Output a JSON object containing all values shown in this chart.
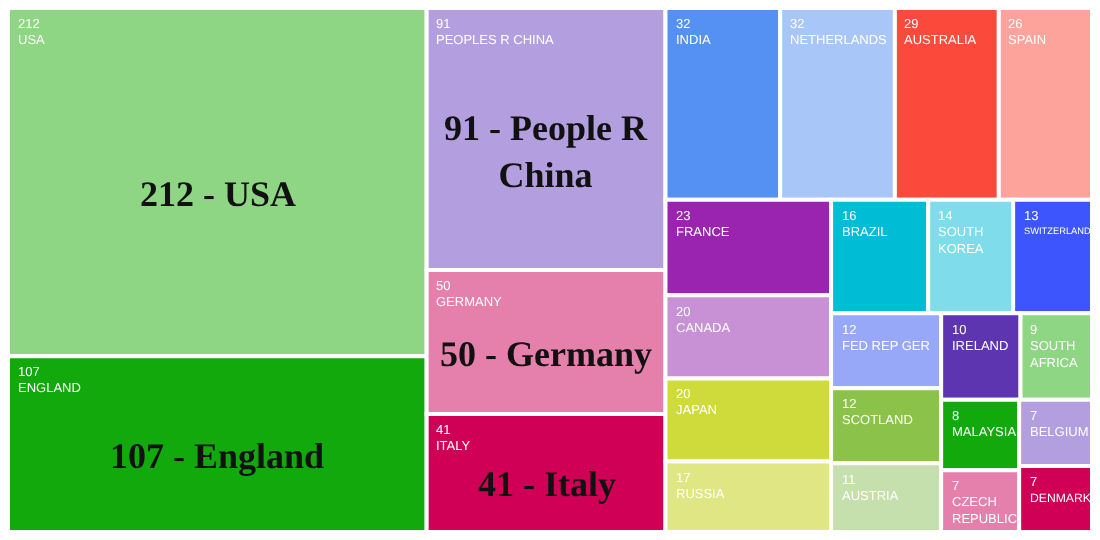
{
  "chart_data": {
    "type": "other",
    "data_labels": true,
    "categories": [
      "USA",
      "ENGLAND",
      "PEOPLES R CHINA",
      "GERMANY",
      "ITALY",
      "INDIA",
      "NETHERLANDS",
      "AUSTRALIA",
      "SPAIN",
      "FRANCE",
      "CANADA",
      "JAPAN",
      "RUSSIA",
      "BRAZIL",
      "SOUTH KOREA",
      "SWITZERLAND",
      "FED REP GER",
      "SCOTLAND",
      "AUSTRIA",
      "IRELAND",
      "SOUTH AFRICA",
      "MALAYSIA",
      "CZECH REPUBLIC",
      "BELGIUM",
      "DENMARK"
    ],
    "values": [
      212,
      107,
      91,
      50,
      41,
      32,
      32,
      29,
      26,
      23,
      20,
      20,
      17,
      16,
      14,
      13,
      12,
      12,
      11,
      10,
      9,
      8,
      7,
      7,
      7
    ],
    "colors": [
      "#8ed683",
      "#12a90c",
      "#b39ee0",
      "#e57fab",
      "#cf0056",
      "#5591f2",
      "#a9c6f8",
      "#fb4a3c",
      "#fda39b",
      "#9a24b0",
      "#c891d6",
      "#cfdb3a",
      "#e0e683",
      "#00bcd4",
      "#7fdcea",
      "#3d55fc",
      "#98a8f8",
      "#8bc34a",
      "#c5e0ac",
      "#5e35b1",
      "#8ed683",
      "#12a90c",
      "#e57fab",
      "#b39ee0",
      "#cf0056"
    ],
    "annotations": [
      "212 - USA",
      "107 - England",
      "91 - People R China",
      "50 - Germany",
      "41 - Italy"
    ]
  }
}
